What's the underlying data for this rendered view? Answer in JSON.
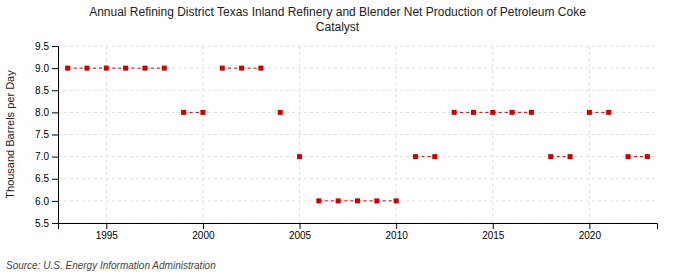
{
  "chart_data": {
    "type": "scatter",
    "title": "Annual Refining District Texas Inland Refinery and Blender Net Production of Petroleum Coke\nCatalyst",
    "ylabel": "Thousand Barrels per Day",
    "annotations": [
      "Source: U.S. Energy Information Administration"
    ],
    "x": [
      1993,
      1994,
      1995,
      1996,
      1997,
      1998,
      1999,
      2000,
      2001,
      2002,
      2003,
      2004,
      2005,
      2006,
      2007,
      2008,
      2009,
      2010,
      2011,
      2012,
      2013,
      2014,
      2015,
      2016,
      2017,
      2018,
      2019,
      2020,
      2021,
      2022,
      2023
    ],
    "values": [
      9.0,
      9.0,
      9.0,
      9.0,
      9.0,
      9.0,
      8.0,
      8.0,
      9.0,
      9.0,
      9.0,
      8.0,
      7.0,
      6.0,
      6.0,
      6.0,
      6.0,
      6.0,
      7.0,
      7.0,
      8.0,
      8.0,
      8.0,
      8.0,
      8.0,
      7.0,
      7.0,
      8.0,
      8.0,
      7.0,
      7.0
    ],
    "color": "#cc0000",
    "marker": "square",
    "line_style": "dashed",
    "xlim": [
      1992.5,
      2023.5
    ],
    "xticks": [
      1995,
      2000,
      2005,
      2010,
      2015,
      2020
    ],
    "ylim": [
      5.5,
      9.5
    ],
    "yticks": [
      5.5,
      {
        "value": 6.0,
        "label": "6.0"
      },
      6.5,
      {
        "value": 7.0,
        "label": "7.0"
      },
      7.5,
      {
        "value": 8.0,
        "label": "8.0"
      },
      8.5,
      {
        "value": 9.0,
        "label": "9.0"
      },
      9.5
    ],
    "grid": true
  }
}
